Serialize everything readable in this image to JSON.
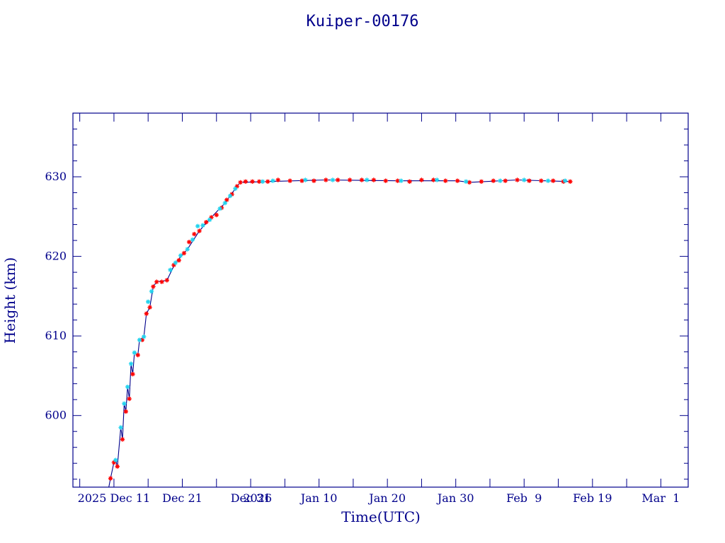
{
  "chart_data": {
    "type": "scatter",
    "title": "Kuiper-00176",
    "xlabel": "Time(UTC)",
    "ylabel": "Height (km)",
    "x_unit": "date (UTC)",
    "xlim": [
      "2025-12-05",
      "2026-03-05"
    ],
    "ylim": [
      591,
      638
    ],
    "y_ticks": [
      600,
      610,
      620,
      630
    ],
    "x_ticks": [
      {
        "date": "2026-01-01",
        "label": "2026"
      },
      {
        "date": "2026-01-10",
        "label": "Jan 10"
      },
      {
        "date": "2026-01-20",
        "label": "Jan 20"
      },
      {
        "date": "2026-01-30",
        "label": "Jan 30"
      },
      {
        "date": "2026-02-09",
        "label": "Feb  9"
      },
      {
        "date": "2026-02-19",
        "label": "Feb 19"
      },
      {
        "date": "2026-03-01",
        "label": "Mar  1"
      },
      {
        "date": "2025-12-11",
        "label": "2025 Dec 11"
      },
      {
        "date": "2025-12-21",
        "label": "Dec 21"
      },
      {
        "date": "2025-12-31",
        "label": "Dec 31"
      }
    ],
    "grid": false,
    "series": [
      {
        "color": "#ff0000",
        "marker": "star",
        "points": [
          [
            "2025-12-10T12:00",
            592.1
          ],
          [
            "2025-12-11T00:00",
            594.1
          ],
          [
            "2025-12-11T12:00",
            593.6
          ],
          [
            "2025-12-12T06:00",
            597.0
          ],
          [
            "2025-12-12T18:00",
            600.5
          ],
          [
            "2025-12-13T06:00",
            602.1
          ],
          [
            "2025-12-13T18:00",
            605.2
          ],
          [
            "2025-12-14T12:00",
            607.6
          ],
          [
            "2025-12-15T03:00",
            609.5
          ],
          [
            "2025-12-15T18:00",
            612.8
          ],
          [
            "2025-12-16T06:00",
            613.6
          ],
          [
            "2025-12-16T18:00",
            616.2
          ],
          [
            "2025-12-17T06:00",
            616.8
          ],
          [
            "2025-12-18T00:00",
            616.8
          ],
          [
            "2025-12-18T18:00",
            617.0
          ],
          [
            "2025-12-19T18:00",
            618.9
          ],
          [
            "2025-12-20T12:00",
            619.5
          ],
          [
            "2025-12-21T06:00",
            620.4
          ],
          [
            "2025-12-22T00:00",
            621.8
          ],
          [
            "2025-12-22T18:00",
            622.8
          ],
          [
            "2025-12-23T12:00",
            623.2
          ],
          [
            "2025-12-24T12:00",
            624.3
          ],
          [
            "2025-12-25T06:00",
            624.9
          ],
          [
            "2025-12-26T00:00",
            625.2
          ],
          [
            "2025-12-26T18:00",
            626.1
          ],
          [
            "2025-12-27T12:00",
            627.1
          ],
          [
            "2025-12-28T06:00",
            627.8
          ],
          [
            "2025-12-29T00:00",
            628.8
          ],
          [
            "2025-12-29T12:00",
            629.3
          ],
          [
            "2025-12-30T06:00",
            629.4
          ],
          [
            "2025-12-31T06:00",
            629.4
          ],
          [
            "2026-01-01T06:00",
            629.4
          ],
          [
            "2026-01-02T12:00",
            629.4
          ],
          [
            "2026-01-04T00:00",
            629.6
          ],
          [
            "2026-01-05T18:00",
            629.5
          ],
          [
            "2026-01-07T12:00",
            629.5
          ],
          [
            "2026-01-09T06:00",
            629.5
          ],
          [
            "2026-01-11T00:00",
            629.6
          ],
          [
            "2026-01-12T18:00",
            629.6
          ],
          [
            "2026-01-14T12:00",
            629.6
          ],
          [
            "2026-01-16T06:00",
            629.6
          ],
          [
            "2026-01-18T00:00",
            629.6
          ],
          [
            "2026-01-19T18:00",
            629.5
          ],
          [
            "2026-01-21T12:00",
            629.5
          ],
          [
            "2026-01-23T06:00",
            629.4
          ],
          [
            "2026-01-25T00:00",
            629.6
          ],
          [
            "2026-01-26T18:00",
            629.6
          ],
          [
            "2026-01-28T12:00",
            629.5
          ],
          [
            "2026-01-30T06:00",
            629.5
          ],
          [
            "2026-02-01T00:00",
            629.3
          ],
          [
            "2026-02-02T18:00",
            629.4
          ],
          [
            "2026-02-04T12:00",
            629.5
          ],
          [
            "2026-02-06T06:00",
            629.5
          ],
          [
            "2026-02-08T00:00",
            629.6
          ],
          [
            "2026-02-09T18:00",
            629.5
          ],
          [
            "2026-02-11T12:00",
            629.5
          ],
          [
            "2026-02-13T06:00",
            629.5
          ],
          [
            "2026-02-14T18:00",
            629.4
          ],
          [
            "2026-02-15T18:00",
            629.4
          ]
        ]
      },
      {
        "color": "#22d3ee",
        "marker": "star",
        "points": [
          [
            "2025-12-11T06:00",
            594.4
          ],
          [
            "2025-12-12T00:00",
            598.5
          ],
          [
            "2025-12-12T12:00",
            601.5
          ],
          [
            "2025-12-13T00:00",
            603.6
          ],
          [
            "2025-12-13T12:00",
            606.5
          ],
          [
            "2025-12-14T00:00",
            607.9
          ],
          [
            "2025-12-14T18:00",
            609.5
          ],
          [
            "2025-12-15T09:00",
            609.9
          ],
          [
            "2025-12-16T00:00",
            614.3
          ],
          [
            "2025-12-16T12:00",
            615.6
          ],
          [
            "2025-12-19T06:00",
            618.3
          ],
          [
            "2025-12-20T00:00",
            619.2
          ],
          [
            "2025-12-20T18:00",
            620.1
          ],
          [
            "2025-12-21T18:00",
            620.9
          ],
          [
            "2025-12-22T12:00",
            622.1
          ],
          [
            "2025-12-23T06:00",
            623.8
          ],
          [
            "2025-12-24T00:00",
            623.9
          ],
          [
            "2025-12-25T00:00",
            624.6
          ],
          [
            "2025-12-26T12:00",
            626.0
          ],
          [
            "2025-12-27T06:00",
            626.7
          ],
          [
            "2025-12-28T00:00",
            627.6
          ],
          [
            "2025-12-28T18:00",
            628.5
          ],
          [
            "2026-01-01T18:00",
            629.4
          ],
          [
            "2026-01-03T06:00",
            629.5
          ],
          [
            "2026-01-08T00:00",
            629.6
          ],
          [
            "2026-01-12T00:00",
            629.6
          ],
          [
            "2026-01-17T00:00",
            629.6
          ],
          [
            "2026-01-22T00:00",
            629.5
          ],
          [
            "2026-01-27T06:00",
            629.6
          ],
          [
            "2026-01-31T12:00",
            629.4
          ],
          [
            "2026-02-05T12:00",
            629.5
          ],
          [
            "2026-02-09T00:00",
            629.6
          ],
          [
            "2026-02-12T12:00",
            629.5
          ],
          [
            "2026-02-15T00:00",
            629.5
          ]
        ]
      },
      {
        "color": "#00008b",
        "marker": "line",
        "points": [
          [
            "2025-12-10T06:00",
            591.0
          ],
          [
            "2025-12-10T12:00",
            592.1
          ],
          [
            "2025-12-11T00:00",
            594.1
          ],
          [
            "2025-12-11T06:00",
            594.4
          ],
          [
            "2025-12-11T12:00",
            593.6
          ],
          [
            "2025-12-12T00:00",
            598.5
          ],
          [
            "2025-12-12T06:00",
            597.0
          ],
          [
            "2025-12-12T12:00",
            601.5
          ],
          [
            "2025-12-12T18:00",
            600.5
          ],
          [
            "2025-12-13T00:00",
            603.6
          ],
          [
            "2025-12-13T06:00",
            602.1
          ],
          [
            "2025-12-13T12:00",
            606.5
          ],
          [
            "2025-12-13T18:00",
            605.2
          ],
          [
            "2025-12-14T00:00",
            607.9
          ],
          [
            "2025-12-14T12:00",
            607.6
          ],
          [
            "2025-12-14T18:00",
            609.5
          ],
          [
            "2025-12-15T09:00",
            609.9
          ],
          [
            "2025-12-15T18:00",
            612.8
          ],
          [
            "2025-12-16T06:00",
            613.6
          ],
          [
            "2025-12-16T18:00",
            616.2
          ],
          [
            "2025-12-17T06:00",
            616.8
          ],
          [
            "2025-12-18T18:00",
            617.0
          ],
          [
            "2025-12-20T00:00",
            619.2
          ],
          [
            "2025-12-21T18:00",
            620.9
          ],
          [
            "2025-12-23T12:00",
            623.2
          ],
          [
            "2025-12-25T06:00",
            624.9
          ],
          [
            "2025-12-27T06:00",
            626.7
          ],
          [
            "2025-12-29T00:00",
            628.8
          ],
          [
            "2025-12-29T12:00",
            629.3
          ],
          [
            "2026-01-02T12:00",
            629.4
          ],
          [
            "2026-01-11T00:00",
            629.6
          ],
          [
            "2026-01-21T12:00",
            629.5
          ],
          [
            "2026-01-30T06:00",
            629.5
          ],
          [
            "2026-02-01T00:00",
            629.3
          ],
          [
            "2026-02-08T00:00",
            629.6
          ],
          [
            "2026-02-15T18:00",
            629.4
          ]
        ]
      }
    ]
  }
}
